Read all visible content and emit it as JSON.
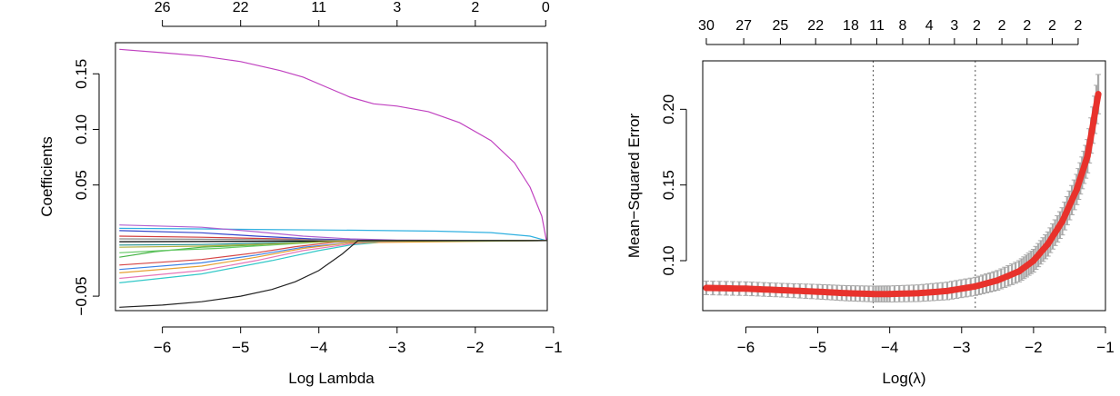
{
  "chart_data": [
    {
      "type": "line",
      "title": "",
      "xlabel": "Log Lambda",
      "ylabel": "Coefficients",
      "xlim": [
        -6.6,
        -1.08
      ],
      "ylim": [
        -0.063,
        0.178
      ],
      "x_ticks": [
        -6,
        -5,
        -4,
        -3,
        -2,
        -1
      ],
      "x_tick_labels": [
        "−6",
        "−5",
        "−4",
        "−3",
        "−2",
        "−1"
      ],
      "y_ticks": [
        0.15,
        0.1,
        0.05,
        -0.05
      ],
      "y_tick_labels": [
        "0.15",
        "0.10",
        "0.05",
        "−0.05"
      ],
      "top_axis": {
        "ticks": [
          -6,
          -5,
          -4,
          -3,
          -2,
          -1.1
        ],
        "labels": [
          "26",
          "22",
          "11",
          "3",
          "2",
          "0"
        ]
      },
      "series": [
        {
          "color": "#c041c0",
          "x": [
            -6.55,
            -6.0,
            -5.5,
            -5.0,
            -4.5,
            -4.2,
            -3.9,
            -3.6,
            -3.3,
            -3.0,
            -2.6,
            -2.2,
            -1.8,
            -1.5,
            -1.3,
            -1.15,
            -1.09
          ],
          "y": [
            0.172,
            0.169,
            0.166,
            0.161,
            0.153,
            0.147,
            0.138,
            0.129,
            0.123,
            0.121,
            0.116,
            0.106,
            0.09,
            0.07,
            0.048,
            0.022,
            0.0
          ]
        },
        {
          "color": "#2fb0e0",
          "x": [
            -6.55,
            -5.5,
            -4.5,
            -3.5,
            -2.5,
            -1.8,
            -1.3,
            -1.09
          ],
          "y": [
            0.011,
            0.0105,
            0.0098,
            0.0093,
            0.0085,
            0.0072,
            0.004,
            0.0
          ]
        },
        {
          "color": "#b060d0",
          "x": [
            -6.55,
            -5.5,
            -4.8,
            -4.2,
            -3.6,
            -3.0,
            -2.0,
            -1.09
          ],
          "y": [
            0.014,
            0.012,
            0.008,
            0.004,
            0.0015,
            0.0005,
            0.0002,
            0.0
          ]
        },
        {
          "color": "#3344cc",
          "x": [
            -6.55,
            -5.5,
            -4.8,
            -4.1,
            -3.5,
            -2.5,
            -1.09
          ],
          "y": [
            0.009,
            0.007,
            0.004,
            0.0015,
            0.0004,
            0.0001,
            0.0
          ]
        },
        {
          "color": "#d23c3c",
          "x": [
            -6.55,
            -5.5,
            -4.5,
            -4.0,
            -3.5,
            -1.09
          ],
          "y": [
            0.004,
            0.003,
            0.0015,
            0.0005,
            0.0001,
            0.0
          ]
        },
        {
          "color": "#32c8c8",
          "x": [
            -6.55,
            -5.5,
            -4.6,
            -4.0,
            -3.6,
            -3.2,
            -2.8,
            -1.09
          ],
          "y": [
            -0.038,
            -0.03,
            -0.018,
            -0.009,
            -0.004,
            -0.0015,
            -0.0003,
            0.0
          ]
        },
        {
          "color": "#e676b8",
          "x": [
            -6.55,
            -5.5,
            -4.8,
            -4.2,
            -3.6,
            -3.2,
            -1.09
          ],
          "y": [
            -0.034,
            -0.027,
            -0.018,
            -0.009,
            -0.003,
            -0.0008,
            0.0
          ]
        },
        {
          "color": "#3c82e6",
          "x": [
            -6.55,
            -5.5,
            -4.8,
            -4.2,
            -3.6,
            -3.2,
            -1.09
          ],
          "y": [
            -0.026,
            -0.02,
            -0.013,
            -0.006,
            -0.002,
            -0.0005,
            0.0
          ]
        },
        {
          "color": "#e6a032",
          "x": [
            -6.55,
            -5.5,
            -4.8,
            -4.2,
            -3.6,
            -1.09
          ],
          "y": [
            -0.029,
            -0.023,
            -0.015,
            -0.007,
            -0.002,
            0.0
          ]
        },
        {
          "color": "#d64646",
          "x": [
            -6.55,
            -5.5,
            -4.8,
            -4.3,
            -3.8,
            -3.4,
            -1.09
          ],
          "y": [
            -0.022,
            -0.017,
            -0.011,
            -0.0055,
            -0.0015,
            -0.0003,
            0.0
          ]
        },
        {
          "color": "#46b446",
          "x": [
            -6.55,
            -6.1,
            -5.5,
            -4.8,
            -4.2,
            -3.7,
            -1.09
          ],
          "y": [
            -0.015,
            -0.01,
            -0.006,
            -0.004,
            -0.0015,
            -0.0004,
            0.0
          ]
        },
        {
          "color": "#64c864",
          "x": [
            -6.55,
            -6.0,
            -5.3,
            -4.6,
            -4.0,
            -3.6,
            -1.09
          ],
          "y": [
            -0.011,
            -0.009,
            -0.007,
            -0.004,
            -0.0015,
            -0.0005,
            0.0
          ]
        },
        {
          "color": "#1e8c8c",
          "x": [
            -6.55,
            -5.5,
            -4.5,
            -4.0,
            -3.6,
            -1.09
          ],
          "y": [
            -0.004,
            -0.0035,
            -0.002,
            -0.001,
            -0.0003,
            0.0
          ]
        },
        {
          "color": "#000000",
          "x": [
            -6.55,
            -5.5,
            -4.5,
            -3.8,
            -3.5,
            -1.09
          ],
          "y": [
            -0.001,
            -0.0008,
            -0.0005,
            -0.0002,
            -0.0001,
            0.0
          ]
        },
        {
          "color": "#8a8a8a",
          "x": [
            -6.55,
            -5.5,
            -4.5,
            -3.9,
            -3.5,
            -1.09
          ],
          "y": [
            0.0015,
            0.0012,
            0.0008,
            0.0003,
            0.0001,
            0.0
          ]
        },
        {
          "color": "#b0b040",
          "x": [
            -6.55,
            -5.5,
            -4.6,
            -4.0,
            -3.6,
            -1.09
          ],
          "y": [
            -0.006,
            -0.005,
            -0.003,
            -0.0012,
            -0.0003,
            0.0
          ]
        },
        {
          "color": "#222222",
          "x": [
            -6.55,
            -6.0,
            -5.5,
            -5.0,
            -4.6,
            -4.3,
            -4.0,
            -3.7,
            -3.55,
            -3.5,
            -1.09
          ],
          "y": [
            -0.06,
            -0.058,
            -0.055,
            -0.05,
            -0.044,
            -0.037,
            -0.027,
            -0.012,
            -0.003,
            0.0,
            0.0
          ]
        }
      ]
    },
    {
      "type": "line",
      "title": "",
      "xlabel": "Log(λ)",
      "ylabel": "Mean−Squared Error",
      "xlim": [
        -6.6,
        -1.0
      ],
      "ylim": [
        0.067,
        0.232
      ],
      "x_ticks": [
        -6,
        -5,
        -4,
        -3,
        -2,
        -1
      ],
      "x_tick_labels": [
        "−6",
        "−5",
        "−4",
        "−3",
        "−2",
        "−1"
      ],
      "y_ticks": [
        0.1,
        0.15,
        0.2
      ],
      "y_tick_labels": [
        "0.10",
        "0.15",
        "0.20"
      ],
      "top_axis": {
        "ticks": [
          -6.55,
          -6.03,
          -5.52,
          -5.03,
          -4.54,
          -4.18,
          -3.82,
          -3.45,
          -3.1,
          -2.79,
          -2.44,
          -2.09,
          -1.74,
          -1.38
        ],
        "labels": [
          "30",
          "27",
          "25",
          "22",
          "18",
          "11",
          "8",
          "4",
          "3",
          "2",
          "2",
          "2",
          "2",
          "2"
        ]
      },
      "vlines": [
        -4.23,
        -2.81
      ],
      "curve_color": "#e8322c",
      "band_color": "#a8a8a8",
      "points": {
        "x": [
          -6.55,
          -6.0,
          -5.5,
          -5.0,
          -4.6,
          -4.23,
          -4.0,
          -3.6,
          -3.2,
          -2.81,
          -2.5,
          -2.2,
          -2.0,
          -1.8,
          -1.6,
          -1.4,
          -1.25,
          -1.1
        ],
        "mse": [
          0.082,
          0.0815,
          0.0805,
          0.0795,
          0.0785,
          0.078,
          0.078,
          0.0785,
          0.08,
          0.083,
          0.087,
          0.093,
          0.1,
          0.111,
          0.126,
          0.147,
          0.169,
          0.21
        ],
        "se": [
          0.0045,
          0.0045,
          0.0045,
          0.0048,
          0.005,
          0.0052,
          0.0053,
          0.0055,
          0.0058,
          0.006,
          0.0065,
          0.007,
          0.0075,
          0.008,
          0.009,
          0.01,
          0.011,
          0.013
        ]
      }
    }
  ]
}
